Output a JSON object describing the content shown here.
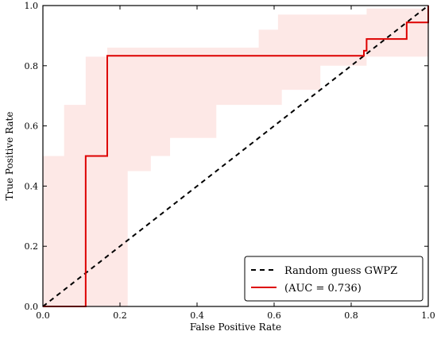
{
  "chart_data": {
    "type": "line",
    "title": "",
    "xlabel": "False Positive Rate",
    "ylabel": "True Positive Rate",
    "xlim": [
      0.0,
      1.0
    ],
    "ylim": [
      0.0,
      1.0
    ],
    "xticks": [
      "0.0",
      "0.2",
      "0.4",
      "0.6",
      "0.8",
      "1.0"
    ],
    "yticks": [
      "0.0",
      "0.2",
      "0.4",
      "0.6",
      "0.8",
      "1.0"
    ],
    "grid": false,
    "legend_position": "bottom-right",
    "series": [
      {
        "name": "Random guess GWPZ",
        "style": "dashed",
        "color": "#000000",
        "x": [
          0.0,
          1.0
        ],
        "y": [
          0.0,
          1.0
        ]
      },
      {
        "name": "(AUC = 0.736)",
        "style": "solid",
        "color": "#dd0000",
        "x": [
          0.0,
          0.111,
          0.111,
          0.167,
          0.167,
          0.833,
          0.833,
          0.84,
          0.84,
          0.944,
          0.944,
          1.0,
          1.0
        ],
        "y": [
          0.0,
          0.0,
          0.5,
          0.5,
          0.833,
          0.833,
          0.85,
          0.85,
          0.889,
          0.889,
          0.944,
          0.944,
          1.0
        ]
      }
    ],
    "confidence_band": {
      "color": "#fde8e6",
      "upper": {
        "x": [
          0.0,
          0.055,
          0.055,
          0.111,
          0.111,
          0.167,
          0.167,
          0.56,
          0.56,
          0.61,
          0.61,
          0.84,
          0.84,
          1.0
        ],
        "y": [
          0.5,
          0.5,
          0.67,
          0.67,
          0.83,
          0.83,
          0.86,
          0.86,
          0.92,
          0.92,
          0.97,
          0.97,
          0.99,
          0.99
        ]
      },
      "lower": {
        "x": [
          0.0,
          0.22,
          0.22,
          0.28,
          0.28,
          0.33,
          0.33,
          0.45,
          0.45,
          0.62,
          0.62,
          0.72,
          0.72,
          0.84,
          0.84,
          1.0
        ],
        "y": [
          0.0,
          0.0,
          0.45,
          0.45,
          0.5,
          0.5,
          0.56,
          0.56,
          0.67,
          0.67,
          0.72,
          0.72,
          0.8,
          0.8,
          0.83,
          0.83
        ]
      }
    }
  }
}
